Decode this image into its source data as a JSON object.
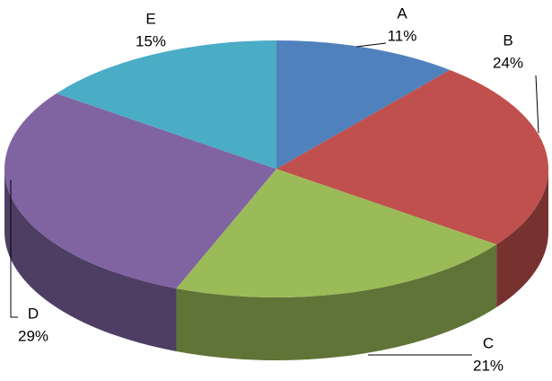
{
  "chart_data": {
    "type": "pie3d",
    "categories": [
      "A",
      "B",
      "C",
      "D",
      "E"
    ],
    "values": [
      11,
      24,
      21,
      29,
      15
    ],
    "value_labels": [
      "11%",
      "24%",
      "21%",
      "29%",
      "15%"
    ],
    "colors": [
      "#4f81bd",
      "#c0504d",
      "#9bbb59",
      "#8064a2",
      "#4bacc6"
    ]
  }
}
